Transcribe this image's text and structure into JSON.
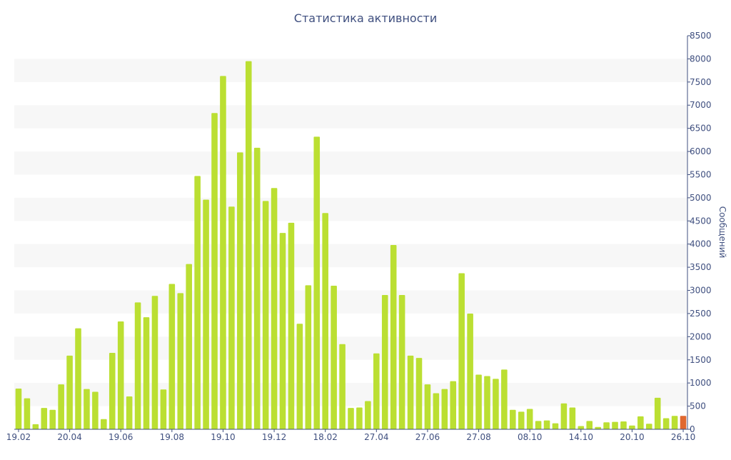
{
  "chart_data": {
    "type": "bar",
    "title": "Статистика активности",
    "xlabel": "",
    "ylabel": "Сообщений",
    "ylim": [
      0,
      8500
    ],
    "y_ticks": [
      0,
      500,
      1000,
      1500,
      2000,
      2500,
      3000,
      3500,
      4000,
      4500,
      5000,
      5500,
      6000,
      6500,
      7000,
      7500,
      8000,
      8500
    ],
    "y_axis_position": "right",
    "grid": "horizontal alternating bands",
    "x_tick_labels": [
      {
        "index": 0,
        "label": "19.02"
      },
      {
        "index": 6,
        "label": "20.04"
      },
      {
        "index": 12,
        "label": "19.06"
      },
      {
        "index": 18,
        "label": "19.08"
      },
      {
        "index": 24,
        "label": "19.10"
      },
      {
        "index": 30,
        "label": "19.12"
      },
      {
        "index": 36,
        "label": "18.02"
      },
      {
        "index": 42,
        "label": "27.04"
      },
      {
        "index": 48,
        "label": "27.06"
      },
      {
        "index": 54,
        "label": "27.08"
      },
      {
        "index": 60,
        "label": "08.10"
      },
      {
        "index": 66,
        "label": "14.10"
      },
      {
        "index": 72,
        "label": "20.10"
      },
      {
        "index": 78,
        "label": "26.10"
      }
    ],
    "values": [
      880,
      670,
      110,
      460,
      420,
      970,
      1590,
      2180,
      870,
      810,
      220,
      1650,
      2330,
      710,
      2740,
      2420,
      2880,
      860,
      3140,
      2940,
      3570,
      5470,
      4960,
      6830,
      7630,
      4810,
      5980,
      7950,
      6080,
      4930,
      5210,
      4240,
      4460,
      2280,
      3110,
      6320,
      4670,
      3100,
      1840,
      460,
      470,
      610,
      1640,
      2900,
      3980,
      2900,
      1590,
      1540,
      970,
      780,
      870,
      1040,
      3370,
      2500,
      1180,
      1150,
      1090,
      1290,
      420,
      380,
      440,
      180,
      190,
      130,
      560,
      470,
      70,
      180,
      50,
      150,
      160,
      170,
      80,
      280,
      120,
      680,
      240,
      290,
      290
    ],
    "colors": {
      "bar": "#bbdf32",
      "highlight_bar": "#e06830",
      "axis_text": "#3f4f7f",
      "band": "#f7f7f7",
      "axis_line": "#3f4f7f"
    },
    "highlight_index": 78
  }
}
